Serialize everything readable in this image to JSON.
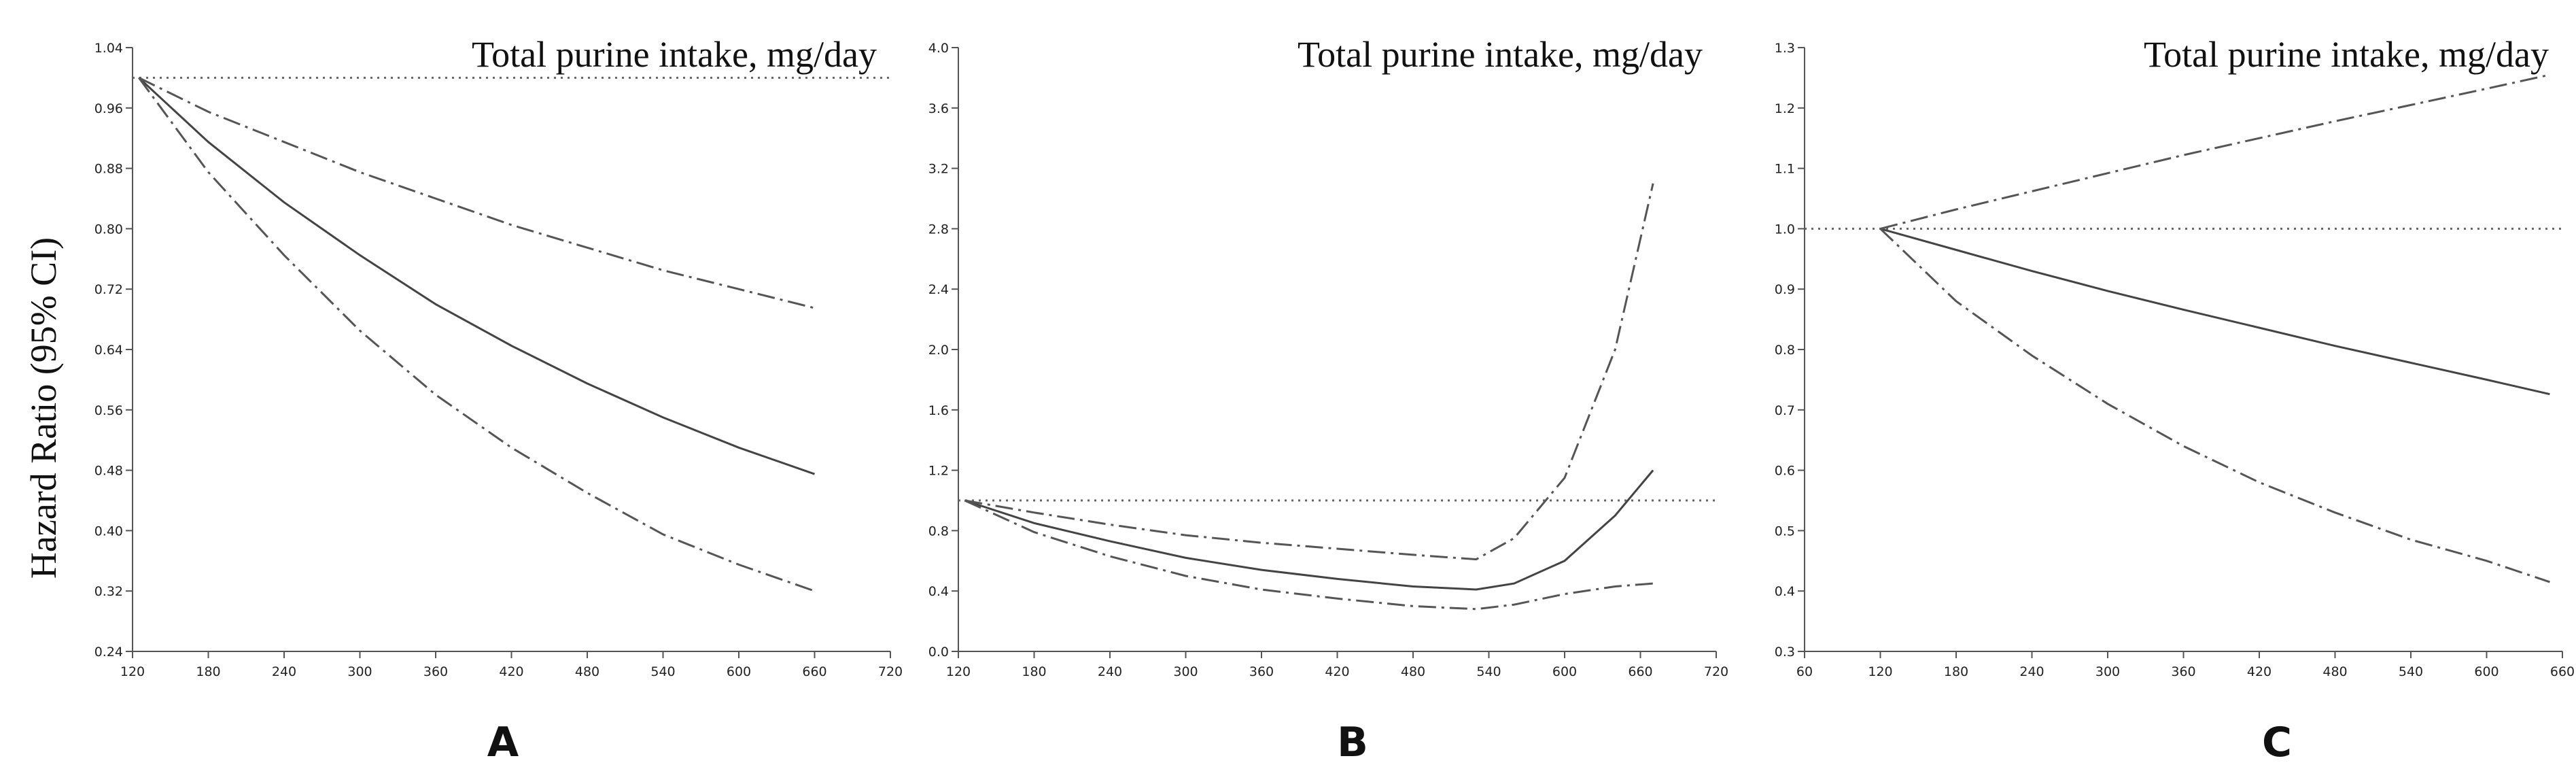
{
  "figure": {
    "ylabel": "Hazard Ratio (95% CI)",
    "panel_letters": [
      "A",
      "B",
      "C"
    ]
  },
  "chart_data": [
    {
      "type": "line",
      "panel": "A",
      "title": "Total purine intake, mg/day",
      "xlabel": "",
      "ylabel": "Hazard Ratio (95% CI)",
      "xlim": [
        120,
        720
      ],
      "ylim": [
        0.24,
        1.04
      ],
      "xticks": [
        120,
        180,
        240,
        300,
        360,
        420,
        480,
        540,
        600,
        660,
        720
      ],
      "yticks": [
        0.24,
        0.32,
        0.4,
        0.48,
        0.56,
        0.64,
        0.72,
        0.8,
        0.88,
        0.96,
        1.04
      ],
      "ytick_labels": [
        "0.24",
        "0.32",
        "0.40",
        "0.48",
        "0.56",
        "0.64",
        "0.72",
        "0.80",
        "0.88",
        "0.96",
        "1.04"
      ],
      "reference_line": 1.0,
      "series": [
        {
          "name": "Hazard ratio",
          "style": "solid",
          "x": [
            125,
            180,
            240,
            300,
            360,
            420,
            480,
            540,
            600,
            660
          ],
          "y": [
            1.0,
            0.915,
            0.835,
            0.765,
            0.7,
            0.645,
            0.595,
            0.55,
            0.51,
            0.475
          ]
        },
        {
          "name": "Upper 95% CI",
          "style": "dash-dot",
          "x": [
            125,
            180,
            240,
            300,
            360,
            420,
            480,
            540,
            600,
            660
          ],
          "y": [
            1.0,
            0.955,
            0.915,
            0.875,
            0.84,
            0.805,
            0.775,
            0.745,
            0.72,
            0.695
          ]
        },
        {
          "name": "Lower 95% CI",
          "style": "dash-dot",
          "x": [
            125,
            180,
            240,
            300,
            360,
            420,
            480,
            540,
            600,
            660
          ],
          "y": [
            1.0,
            0.875,
            0.765,
            0.665,
            0.58,
            0.51,
            0.45,
            0.395,
            0.355,
            0.32
          ]
        }
      ]
    },
    {
      "type": "line",
      "panel": "B",
      "title": "Total purine intake, mg/day",
      "xlabel": "",
      "ylabel": "",
      "xlim": [
        120,
        720
      ],
      "ylim": [
        0.0,
        4.0
      ],
      "xticks": [
        120,
        180,
        240,
        300,
        360,
        420,
        480,
        540,
        600,
        660,
        720
      ],
      "yticks": [
        0.0,
        0.4,
        0.8,
        1.2,
        1.6,
        2.0,
        2.4,
        2.8,
        3.2,
        3.6,
        4.0
      ],
      "ytick_labels": [
        "0.0",
        "0.4",
        "0.8",
        "1.2",
        "1.6",
        "2.0",
        "2.4",
        "2.8",
        "3.2",
        "3.6",
        "4.0"
      ],
      "reference_line": 1.0,
      "series": [
        {
          "name": "Hazard ratio",
          "style": "solid",
          "x": [
            125,
            180,
            240,
            300,
            360,
            420,
            480,
            530,
            560,
            600,
            640,
            670
          ],
          "y": [
            1.0,
            0.85,
            0.73,
            0.62,
            0.54,
            0.48,
            0.43,
            0.41,
            0.45,
            0.6,
            0.9,
            1.2
          ]
        },
        {
          "name": "Upper 95% CI",
          "style": "dash-dot",
          "x": [
            125,
            180,
            240,
            300,
            360,
            420,
            480,
            530,
            560,
            600,
            640,
            670
          ],
          "y": [
            1.0,
            0.92,
            0.84,
            0.77,
            0.72,
            0.68,
            0.64,
            0.61,
            0.75,
            1.15,
            2.0,
            3.1
          ]
        },
        {
          "name": "Lower 95% CI",
          "style": "dash-dot",
          "x": [
            125,
            180,
            240,
            300,
            360,
            420,
            480,
            530,
            560,
            600,
            640,
            670
          ],
          "y": [
            1.0,
            0.79,
            0.63,
            0.5,
            0.41,
            0.35,
            0.3,
            0.28,
            0.31,
            0.38,
            0.43,
            0.45
          ]
        }
      ]
    },
    {
      "type": "line",
      "panel": "C",
      "title": "Total purine intake, mg/day",
      "xlabel": "",
      "ylabel": "",
      "xlim": [
        60,
        660
      ],
      "ylim": [
        0.3,
        1.3
      ],
      "xticks": [
        60,
        120,
        180,
        240,
        300,
        360,
        420,
        480,
        540,
        600,
        660
      ],
      "yticks": [
        0.3,
        0.4,
        0.5,
        0.6,
        0.7,
        0.8,
        0.9,
        1.0,
        1.1,
        1.2,
        1.3
      ],
      "ytick_labels": [
        "0.3",
        "0.4",
        "0.5",
        "0.6",
        "0.7",
        "0.8",
        "0.9",
        "1.0",
        "1.1",
        "1.2",
        "1.3"
      ],
      "reference_line": 1.0,
      "series": [
        {
          "name": "Hazard ratio",
          "style": "solid",
          "x": [
            120,
            180,
            240,
            300,
            360,
            420,
            480,
            540,
            600,
            650
          ],
          "y": [
            1.0,
            0.965,
            0.93,
            0.897,
            0.866,
            0.836,
            0.806,
            0.778,
            0.75,
            0.726
          ]
        },
        {
          "name": "Upper 95% CI",
          "style": "dash-dot",
          "x": [
            120,
            180,
            240,
            300,
            360,
            420,
            480,
            540,
            600,
            650
          ],
          "y": [
            1.0,
            1.032,
            1.062,
            1.092,
            1.122,
            1.15,
            1.178,
            1.205,
            1.232,
            1.255
          ]
        },
        {
          "name": "Lower 95% CI",
          "style": "dash-dot",
          "x": [
            120,
            180,
            240,
            300,
            360,
            420,
            480,
            540,
            600,
            650
          ],
          "y": [
            1.0,
            0.88,
            0.79,
            0.71,
            0.64,
            0.58,
            0.53,
            0.485,
            0.45,
            0.415
          ]
        }
      ]
    }
  ]
}
